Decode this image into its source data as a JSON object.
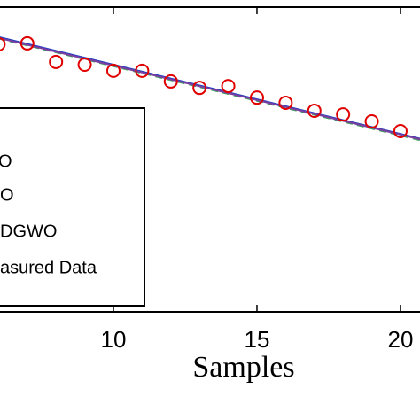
{
  "chart_data": {
    "type": "line",
    "x_label": "Samples",
    "xlim": [
      6.05,
      20.68
    ],
    "ylim": [
      0,
      1
    ],
    "xticks": [
      10,
      15,
      20
    ],
    "lines": [
      {
        "name": "O",
        "color": "#1f3fbf",
        "dash": "solid",
        "x": [
          6,
          21
        ],
        "values": [
          0.902,
          0.561
        ]
      },
      {
        "name": "O",
        "color": "#3aa55a",
        "dash": "dashed",
        "x": [
          6,
          21
        ],
        "values": [
          0.897,
          0.556
        ]
      },
      {
        "name": "DGWO",
        "color": "#7a3fa0",
        "dash": "solid",
        "x": [
          6,
          21
        ],
        "values": [
          0.899,
          0.559
        ]
      }
    ],
    "measured": {
      "name": "asured Data",
      "color": "#e00000",
      "x": [
        6,
        7,
        8,
        9,
        10,
        11,
        12,
        13,
        14,
        15,
        16,
        17,
        18,
        19,
        20
      ],
      "values": [
        0.878,
        0.881,
        0.82,
        0.811,
        0.791,
        0.791,
        0.756,
        0.735,
        0.741,
        0.703,
        0.686,
        0.66,
        0.648,
        0.625,
        0.593
      ]
    }
  }
}
